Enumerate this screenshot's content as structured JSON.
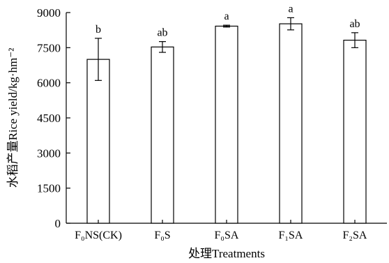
{
  "chart_data": {
    "type": "bar",
    "title": "",
    "xlabel": "处理Treatments",
    "ylabel": "水稻产量Rice yield/kg·hm⁻²",
    "ylim": [
      0,
      9000
    ],
    "yticks": [
      0,
      1500,
      3000,
      4500,
      6000,
      7500,
      9000
    ],
    "categories": [
      "F₀NS(CK)",
      "F₀S",
      "F₀SA",
      "F₁SA",
      "F₂SA"
    ],
    "values": [
      7000,
      7530,
      8420,
      8520,
      7820
    ],
    "errors": [
      900,
      230,
      40,
      260,
      320
    ],
    "significance": [
      "b",
      "ab",
      "a",
      "a",
      "ab"
    ],
    "grid": false,
    "legend": "none"
  }
}
